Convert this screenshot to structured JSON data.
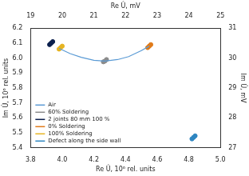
{
  "chart_data": {
    "type": "scatter",
    "x_label": "Re Û, 10⁶ rel. units",
    "y_label": "Im Û, 10⁶ rel. units",
    "x2_label": "Re Û, mV",
    "y2_label": "Im Û, mV",
    "xlim": [
      3.8,
      5.0
    ],
    "xticks": [
      3.8,
      {
        "value": 4.0,
        "label": "4.0"
      },
      4.2,
      4.4,
      4.6,
      4.8,
      {
        "value": 5.0,
        "label": "5.0"
      }
    ],
    "ylim": [
      5.4,
      6.2
    ],
    "yticks": [
      5.4,
      5.5,
      5.6,
      5.7,
      5.8,
      5.9,
      {
        "value": 6.0,
        "label": "6.0"
      },
      6.1,
      6.2
    ],
    "x2lim": [
      19,
      25
    ],
    "x2ticks": [
      19,
      20,
      21,
      22,
      23,
      24,
      25
    ],
    "y2lim": [
      27,
      31
    ],
    "y2ticks": [
      27,
      28,
      29,
      30,
      31
    ],
    "grid": false,
    "legend": "lower left",
    "series": [
      {
        "name": "Air",
        "type": "line",
        "marker": "none",
        "line_style": "solid",
        "color": "#5b9bd5",
        "x": [
          3.98,
          4.05,
          4.12,
          4.2,
          4.27,
          4.35,
          4.42,
          4.5,
          4.55
        ],
        "values": [
          6.065,
          6.03,
          6.005,
          5.985,
          5.98,
          5.99,
          6.01,
          6.05,
          6.08
        ]
      },
      {
        "name": "60% Soldering",
        "type": "scatter",
        "marker": "circle",
        "color": "#8c8c8c",
        "x": [
          4.26,
          4.27,
          4.28
        ],
        "values": [
          5.975,
          5.98,
          5.99
        ]
      },
      {
        "name": "2 joints 80 mm 100 %",
        "type": "scatter",
        "marker": "circle",
        "color": "#0b1f4d",
        "x": [
          3.92,
          3.93,
          3.94
        ],
        "values": [
          6.09,
          6.1,
          6.11
        ]
      },
      {
        "name": "0% Soldering",
        "type": "scatter",
        "marker": "circle",
        "color": "#e07b1a",
        "x": [
          4.54,
          4.55,
          4.56
        ],
        "values": [
          6.07,
          6.08,
          6.09
        ]
      },
      {
        "name": "100% Soldering",
        "type": "scatter",
        "marker": "circle",
        "color": "#e6b422",
        "x": [
          3.98,
          3.99,
          4.0
        ],
        "values": [
          6.06,
          6.07,
          6.08
        ]
      },
      {
        "name": "Defect along the side wall",
        "type": "scatter",
        "marker": "circle",
        "color": "#2e86c1",
        "x": [
          4.82,
          4.83,
          4.84
        ],
        "values": [
          5.46,
          5.47,
          5.48
        ]
      }
    ]
  }
}
